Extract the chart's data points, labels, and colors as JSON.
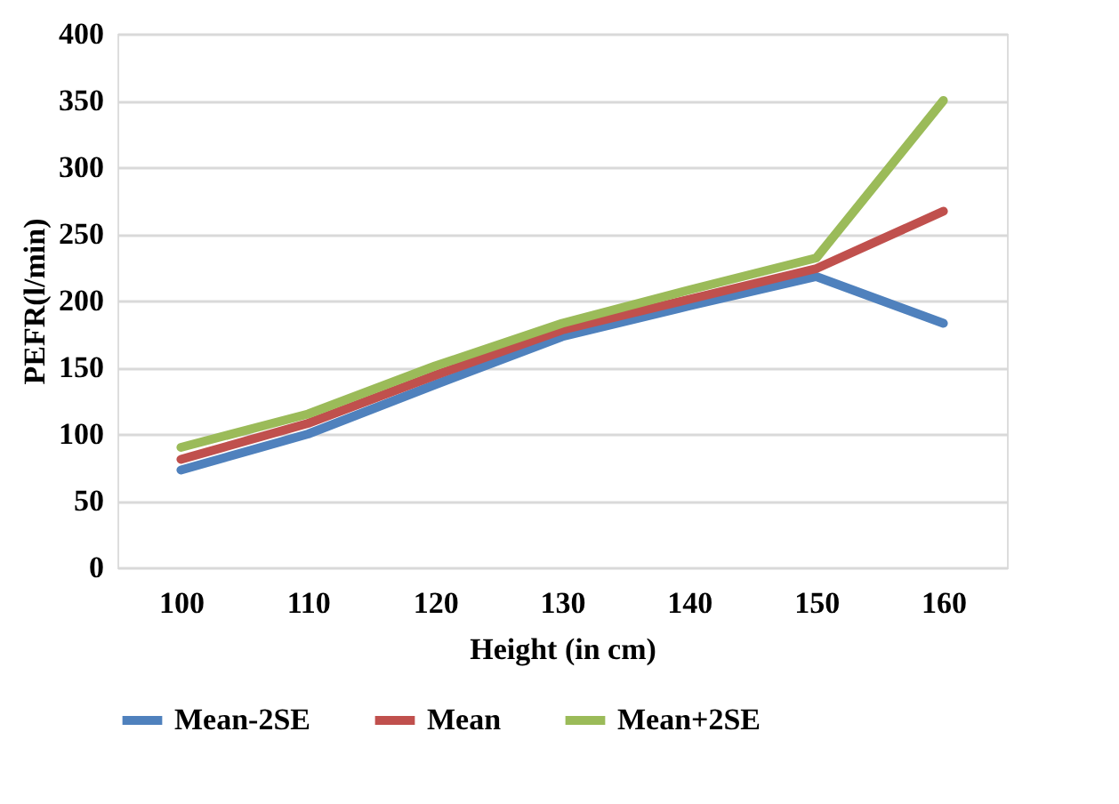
{
  "chart_data": {
    "type": "line",
    "xlabel": "Height (in cm)",
    "ylabel": "PEFR(l/min)",
    "categories": [
      "100",
      "110",
      "120",
      "130",
      "140",
      "150",
      "160"
    ],
    "series": [
      {
        "name": "Mean-2SE",
        "color": "#4f81bd",
        "values": [
          73,
          100,
          137,
          173,
          196,
          218,
          183
        ]
      },
      {
        "name": "Mean",
        "color": "#c0504d",
        "values": [
          81,
          108,
          144,
          178,
          201,
          224,
          267
        ]
      },
      {
        "name": "Mean+2SE",
        "color": "#9bbb59",
        "values": [
          90,
          115,
          151,
          183,
          208,
          232,
          350
        ]
      }
    ],
    "ylim": [
      0,
      400
    ],
    "yticks": [
      0,
      50,
      100,
      150,
      200,
      250,
      300,
      350,
      400
    ],
    "grid": "y",
    "legend": "bottom",
    "marker": "none",
    "line_style": "solid"
  }
}
